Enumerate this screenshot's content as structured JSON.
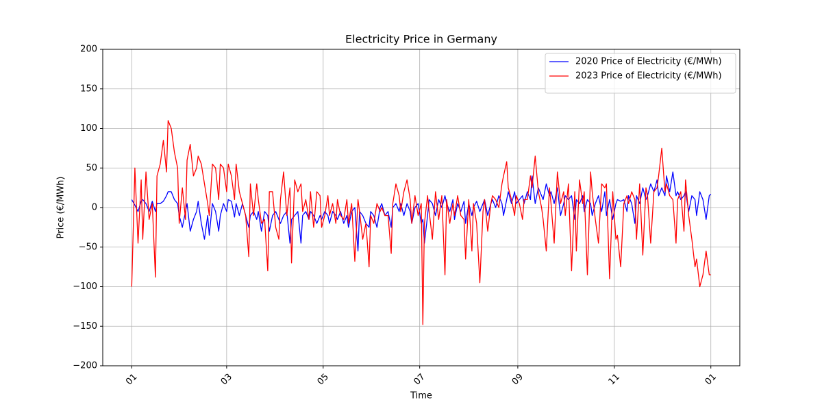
{
  "chart_data": {
    "type": "line",
    "title": "Electricity Price in Germany",
    "xlabel": "Time",
    "ylabel": "Price (€/MWh)",
    "x": [
      0,
      2,
      4,
      6,
      7,
      9,
      11,
      13,
      15,
      16,
      18,
      20,
      22,
      23,
      25,
      27,
      29,
      30,
      32,
      34,
      35,
      37,
      39,
      41,
      42,
      44,
      46,
      48,
      49,
      51,
      53,
      55,
      56,
      58,
      60,
      61,
      63,
      65,
      66,
      68,
      70,
      72,
      74,
      75,
      77,
      79,
      80,
      82,
      84,
      86,
      87,
      89,
      91,
      93,
      94,
      96,
      98,
      100,
      101,
      103,
      105,
      107,
      108,
      110,
      112,
      113,
      115,
      117,
      119,
      120,
      122,
      124,
      125,
      127,
      129,
      130,
      132,
      134,
      136,
      137,
      139,
      141,
      143,
      144,
      146,
      148,
      150,
      151,
      153,
      155,
      157,
      158,
      160,
      162,
      164,
      165,
      167,
      169,
      170,
      172,
      174,
      176,
      177,
      179,
      181,
      183,
      184,
      185,
      187,
      188,
      190,
      192,
      194,
      196,
      198,
      199,
      201,
      203,
      204,
      206,
      208,
      210,
      211,
      213,
      215,
      216,
      218,
      220,
      222,
      223,
      225,
      227,
      228,
      230,
      232,
      234,
      235,
      237,
      238,
      240,
      242,
      243,
      245,
      247,
      248,
      250,
      252,
      253,
      255,
      257,
      259,
      260,
      262,
      264,
      265,
      267,
      269,
      271,
      273,
      274,
      276,
      278,
      280,
      281,
      283,
      285,
      286,
      288,
      290,
      291,
      293,
      295,
      297,
      299,
      300,
      302,
      304,
      306,
      307,
      309,
      311,
      313,
      314,
      316,
      318,
      319,
      321,
      323,
      325,
      326,
      328,
      330,
      332,
      333,
      335,
      337,
      338,
      340,
      342,
      344,
      345,
      347,
      349,
      350,
      352,
      354,
      356,
      357,
      359,
      361,
      363,
      365,
      366
    ],
    "series": [
      {
        "name": "2020 Price of Electricity (€/MWh)",
        "color": "#0000ff",
        "values": [
          10,
          3,
          -5,
          8,
          10,
          5,
          -5,
          8,
          -5,
          5,
          5,
          8,
          15,
          20,
          20,
          10,
          5,
          -10,
          -25,
          -5,
          5,
          -30,
          -15,
          -5,
          8,
          -20,
          -40,
          -10,
          -35,
          5,
          -5,
          -30,
          -10,
          5,
          -5,
          10,
          8,
          -12,
          5,
          -10,
          5,
          -10,
          -25,
          -10,
          -5,
          -15,
          -5,
          -30,
          -5,
          -10,
          -30,
          -10,
          -5,
          -15,
          -20,
          -10,
          -5,
          -45,
          -15,
          -10,
          -5,
          -45,
          -10,
          -5,
          -15,
          -5,
          -10,
          -20,
          -10,
          -15,
          -5,
          -10,
          -20,
          -5,
          -10,
          -15,
          -5,
          -20,
          -10,
          -25,
          -5,
          0,
          -55,
          -5,
          -10,
          -20,
          -25,
          -5,
          -10,
          -25,
          0,
          5,
          -10,
          -5,
          -25,
          0,
          5,
          -5,
          5,
          -10,
          5,
          -5,
          -20,
          0,
          5,
          -20,
          -15,
          -45,
          -10,
          10,
          5,
          -10,
          10,
          0,
          15,
          5,
          -5,
          10,
          -15,
          5,
          -5,
          8,
          -20,
          5,
          -10,
          0,
          8,
          -5,
          5,
          10,
          -10,
          5,
          10,
          0,
          15,
          5,
          -10,
          10,
          20,
          5,
          20,
          5,
          10,
          15,
          5,
          20,
          10,
          40,
          5,
          25,
          15,
          10,
          30,
          15,
          20,
          5,
          25,
          -10,
          5,
          15,
          10,
          15,
          -15,
          10,
          5,
          15,
          -5,
          10,
          5,
          -10,
          5,
          15,
          -5,
          20,
          -10,
          10,
          -15,
          5,
          10,
          8,
          10,
          -5,
          15,
          5,
          -20,
          15,
          5,
          25,
          10,
          15,
          30,
          20,
          35,
          15,
          25,
          15,
          40,
          20,
          45,
          15,
          20,
          10,
          15,
          20,
          -5,
          15,
          10,
          -10,
          20,
          10,
          -15,
          15,
          17
        ]
      },
      {
        "name": "2023 Price of Electricity (€/MWh)",
        "color": "#ff0000",
        "values": [
          -100,
          50,
          -45,
          35,
          -40,
          45,
          -15,
          5,
          -88,
          40,
          55,
          85,
          45,
          110,
          100,
          70,
          50,
          -20,
          25,
          -15,
          60,
          80,
          40,
          50,
          65,
          55,
          30,
          5,
          -10,
          55,
          50,
          10,
          55,
          50,
          20,
          55,
          40,
          10,
          55,
          20,
          5,
          -10,
          -62,
          30,
          -10,
          30,
          10,
          -20,
          -15,
          -80,
          20,
          20,
          -25,
          -40,
          10,
          45,
          -10,
          25,
          -70,
          35,
          20,
          30,
          -5,
          10,
          -15,
          20,
          -25,
          20,
          15,
          -25,
          -10,
          15,
          -10,
          5,
          -20,
          10,
          -10,
          -15,
          10,
          -20,
          5,
          -68,
          10,
          -5,
          -40,
          -20,
          -75,
          -10,
          -20,
          5,
          -5,
          0,
          -10,
          -10,
          -58,
          5,
          30,
          15,
          -5,
          20,
          35,
          10,
          -20,
          15,
          -10,
          5,
          -148,
          -20,
          15,
          -5,
          -40,
          20,
          -15,
          15,
          -85,
          10,
          -20,
          5,
          -10,
          15,
          -10,
          -15,
          -65,
          10,
          -55,
          5,
          -20,
          -95,
          -5,
          10,
          -30,
          5,
          15,
          10,
          0,
          30,
          40,
          58,
          25,
          10,
          -10,
          15,
          5,
          -15,
          10,
          10,
          40,
          25,
          65,
          20,
          0,
          -15,
          -55,
          25,
          5,
          -45,
          45,
          5,
          20,
          -10,
          30,
          -80,
          20,
          -55,
          35,
          5,
          20,
          -85,
          45,
          20,
          -15,
          -45,
          30,
          25,
          30,
          -90,
          20,
          -40,
          -35,
          -75,
          5,
          15,
          5,
          20,
          10,
          -40,
          30,
          -60,
          25,
          15,
          -45,
          20,
          25,
          40,
          75,
          20,
          30,
          15,
          10,
          -45,
          10,
          20,
          -30,
          35,
          -10,
          -40,
          -75,
          -65,
          -100,
          -85,
          -55,
          -85,
          -85
        ]
      }
    ],
    "xlim": [
      -18.3,
      384.3
    ],
    "xticks": [
      {
        "value": 0,
        "label": "01"
      },
      {
        "value": 60,
        "label": "03"
      },
      {
        "value": 121,
        "label": "05"
      },
      {
        "value": 182,
        "label": "07"
      },
      {
        "value": 244,
        "label": "09"
      },
      {
        "value": 305,
        "label": "11"
      },
      {
        "value": 366,
        "label": "01"
      }
    ],
    "ylim": [
      -200,
      200
    ],
    "yticks": [
      {
        "value": -200,
        "label": "−200"
      },
      {
        "value": -150,
        "label": "−150"
      },
      {
        "value": -100,
        "label": "−100"
      },
      {
        "value": -50,
        "label": "−50"
      },
      0,
      50,
      100,
      150,
      200
    ],
    "grid": true,
    "legend": "upper right"
  }
}
